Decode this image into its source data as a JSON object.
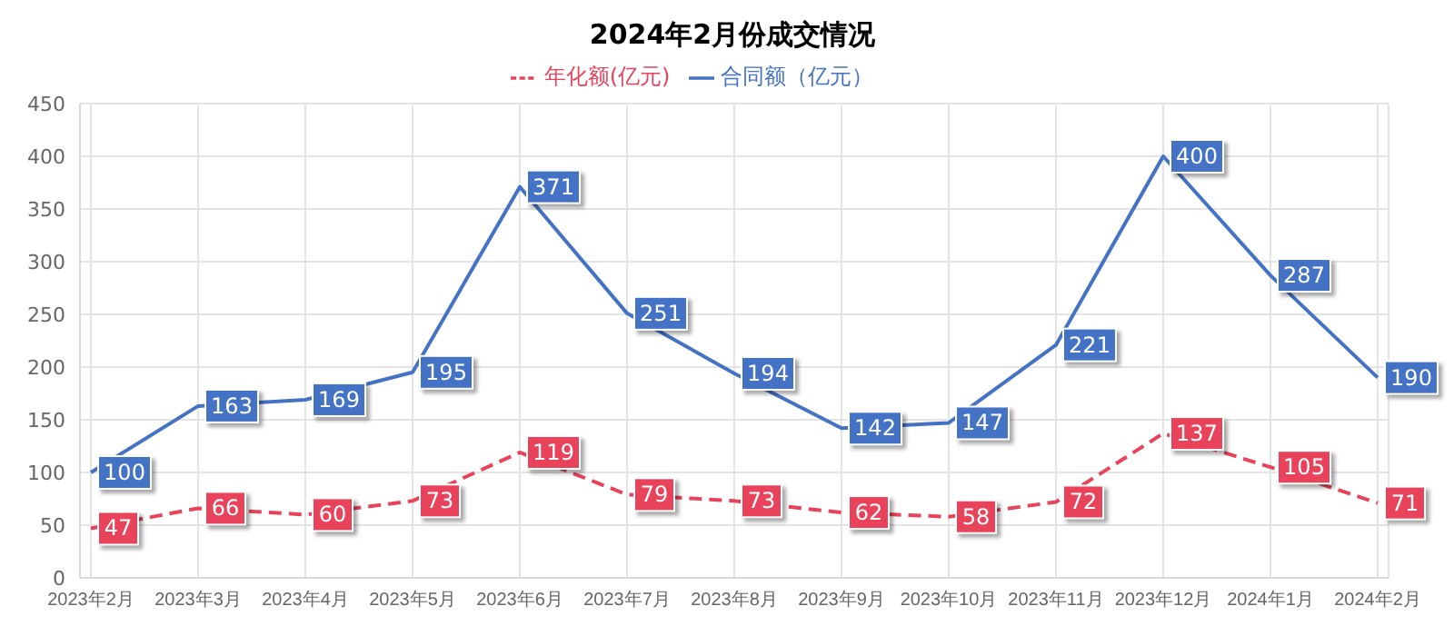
{
  "chart_data": {
    "type": "line",
    "title": "2024年2月份成交情况",
    "categories": [
      "2023年2月",
      "2023年3月",
      "2023年4月",
      "2023年5月",
      "2023年6月",
      "2023年7月",
      "2023年8月",
      "2023年9月",
      "2023年10月",
      "2023年11月",
      "2023年12月",
      "2024年1月",
      "2024年2月"
    ],
    "series": [
      {
        "name": "年化额(亿元)",
        "color": "#e8435a",
        "line_style": "dashed",
        "values": [
          47,
          66,
          60,
          73,
          119,
          79,
          73,
          62,
          58,
          72,
          137,
          105,
          71
        ]
      },
      {
        "name": "合同额（亿元）",
        "color": "#4472c4",
        "line_style": "solid",
        "values": [
          100,
          163,
          169,
          195,
          371,
          251,
          194,
          142,
          147,
          221,
          400,
          287,
          190
        ]
      }
    ],
    "ylim": [
      0,
      450
    ],
    "yticks": [
      0,
      50,
      100,
      150,
      200,
      250,
      300,
      350,
      400,
      450
    ],
    "grid": true,
    "legend": "top",
    "marker": "none",
    "data_labels": true
  }
}
